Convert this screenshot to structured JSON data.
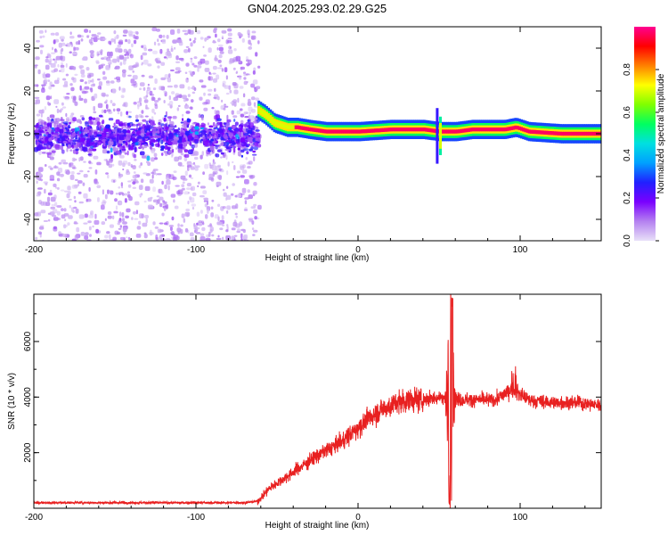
{
  "chart_data": [
    {
      "type": "heatmap",
      "title": "GN04.2025.293.02.29.G25",
      "xlabel": "Height of straight line (km)",
      "ylabel": "Frequency (Hz)",
      "xlim": [
        -200,
        150
      ],
      "ylim": [
        -50,
        50
      ],
      "xticks": [
        -200,
        -100,
        0,
        100
      ],
      "yticks": [
        -40,
        -20,
        0,
        20,
        40
      ],
      "colorbar": {
        "label": "Normalized spectral amplitude",
        "range": [
          0.0,
          1.0
        ],
        "ticks": [
          "0.0",
          "0.2",
          "0.4",
          "0.6",
          "0.8"
        ],
        "colormap": [
          "#e8e0f8",
          "#b480f0",
          "#7a00ff",
          "#2020ff",
          "#00a0ff",
          "#00e0e0",
          "#00ff60",
          "#80ff00",
          "#ffff00",
          "#ff8000",
          "#ff0000",
          "#ff0090"
        ]
      },
      "noise_region": {
        "x_range": [
          -200,
          -62
        ],
        "freq_center": 0,
        "freq_band": [
          -8,
          8
        ]
      },
      "ridge": [
        {
          "x": -62,
          "f": 11
        },
        {
          "x": -58,
          "f": 9
        },
        {
          "x": -55,
          "f": 7
        },
        {
          "x": -52,
          "f": 5
        },
        {
          "x": -48,
          "f": 4
        },
        {
          "x": -44,
          "f": 3
        },
        {
          "x": -38,
          "f": 3
        },
        {
          "x": -30,
          "f": 2
        },
        {
          "x": -20,
          "f": 1
        },
        {
          "x": 0,
          "f": 1
        },
        {
          "x": 20,
          "f": 2
        },
        {
          "x": 40,
          "f": 2
        },
        {
          "x": 50,
          "f": 1
        },
        {
          "x": 60,
          "f": 1
        },
        {
          "x": 70,
          "f": 2
        },
        {
          "x": 80,
          "f": 2
        },
        {
          "x": 90,
          "f": 2
        },
        {
          "x": 97,
          "f": 3
        },
        {
          "x": 105,
          "f": 1
        },
        {
          "x": 125,
          "f": 0
        },
        {
          "x": 150,
          "f": 0
        }
      ]
    },
    {
      "type": "line",
      "xlabel": "Height of straight line (km)",
      "ylabel": "SNR (10 * v/v)",
      "xlim": [
        -200,
        150
      ],
      "ylim": [
        0,
        7700
      ],
      "xticks": [
        -200,
        -100,
        0,
        100
      ],
      "yticks": [
        2000,
        4000,
        6000
      ],
      "color": "#e82020",
      "trend": [
        {
          "x": -200,
          "y": 200
        },
        {
          "x": -70,
          "y": 200
        },
        {
          "x": -62,
          "y": 250
        },
        {
          "x": -55,
          "y": 700
        },
        {
          "x": -40,
          "y": 1300
        },
        {
          "x": -25,
          "y": 1900
        },
        {
          "x": -10,
          "y": 2400
        },
        {
          "x": 0,
          "y": 2900
        },
        {
          "x": 10,
          "y": 3400
        },
        {
          "x": 20,
          "y": 3700
        },
        {
          "x": 30,
          "y": 3900
        },
        {
          "x": 40,
          "y": 3900
        },
        {
          "x": 50,
          "y": 4000
        },
        {
          "x": 60,
          "y": 3900
        },
        {
          "x": 70,
          "y": 3900
        },
        {
          "x": 85,
          "y": 3900
        },
        {
          "x": 95,
          "y": 4300
        },
        {
          "x": 105,
          "y": 3900
        },
        {
          "x": 120,
          "y": 3800
        },
        {
          "x": 135,
          "y": 3800
        },
        {
          "x": 150,
          "y": 3700
        }
      ],
      "spike": {
        "x_center": 57,
        "max": 7700,
        "min": 0
      }
    }
  ]
}
